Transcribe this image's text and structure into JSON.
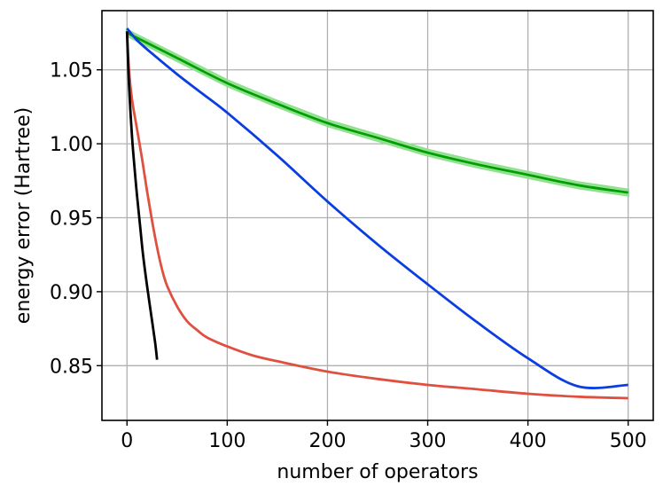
{
  "chart_data": {
    "type": "line",
    "xlabel": "number of operators",
    "ylabel": "energy error (Hartree)",
    "xlim": [
      -25,
      525
    ],
    "ylim": [
      0.813,
      1.09
    ],
    "xticks": [
      0,
      100,
      200,
      300,
      400,
      500
    ],
    "xtick_labels": [
      "0",
      "100",
      "200",
      "300",
      "400",
      "500"
    ],
    "yticks": [
      0.85,
      0.9,
      0.95,
      1.0,
      1.05
    ],
    "ytick_labels": [
      "0.85",
      "0.90",
      "0.95",
      "1.00",
      "1.05"
    ],
    "grid": true,
    "series": [
      {
        "color": "#00a000",
        "band_color": "#90e090",
        "band_halfwidth": 0.002,
        "x": [
          0,
          50,
          100,
          150,
          200,
          250,
          300,
          350,
          400,
          450,
          500
        ],
        "y": [
          1.075,
          1.058,
          1.041,
          1.027,
          1.014,
          1.004,
          0.994,
          0.986,
          0.979,
          0.972,
          0.967
        ]
      },
      {
        "color": "#0a3ee0",
        "x": [
          0,
          10,
          25,
          50,
          75,
          100,
          150,
          200,
          250,
          300,
          350,
          400,
          450,
          500
        ],
        "y": [
          1.078,
          1.07,
          1.061,
          1.047,
          1.034,
          1.021,
          0.992,
          0.961,
          0.932,
          0.905,
          0.879,
          0.855,
          0.836,
          0.837
        ]
      },
      {
        "color": "#e05040",
        "x": [
          0,
          2,
          5,
          10,
          15,
          20,
          25,
          30,
          35,
          40,
          50,
          60,
          70,
          80,
          100,
          125,
          150,
          200,
          250,
          300,
          350,
          400,
          450,
          500
        ],
        "y": [
          1.076,
          1.05,
          1.03,
          1.01,
          0.99,
          0.968,
          0.948,
          0.93,
          0.915,
          0.904,
          0.89,
          0.88,
          0.874,
          0.869,
          0.863,
          0.857,
          0.853,
          0.846,
          0.841,
          0.837,
          0.834,
          0.831,
          0.829,
          0.828
        ]
      },
      {
        "color": "#000000",
        "x": [
          0,
          2,
          5,
          8,
          10,
          13,
          16,
          20,
          24,
          28,
          30
        ],
        "y": [
          1.076,
          1.04,
          1.005,
          0.98,
          0.965,
          0.945,
          0.925,
          0.904,
          0.885,
          0.866,
          0.854
        ]
      }
    ]
  }
}
